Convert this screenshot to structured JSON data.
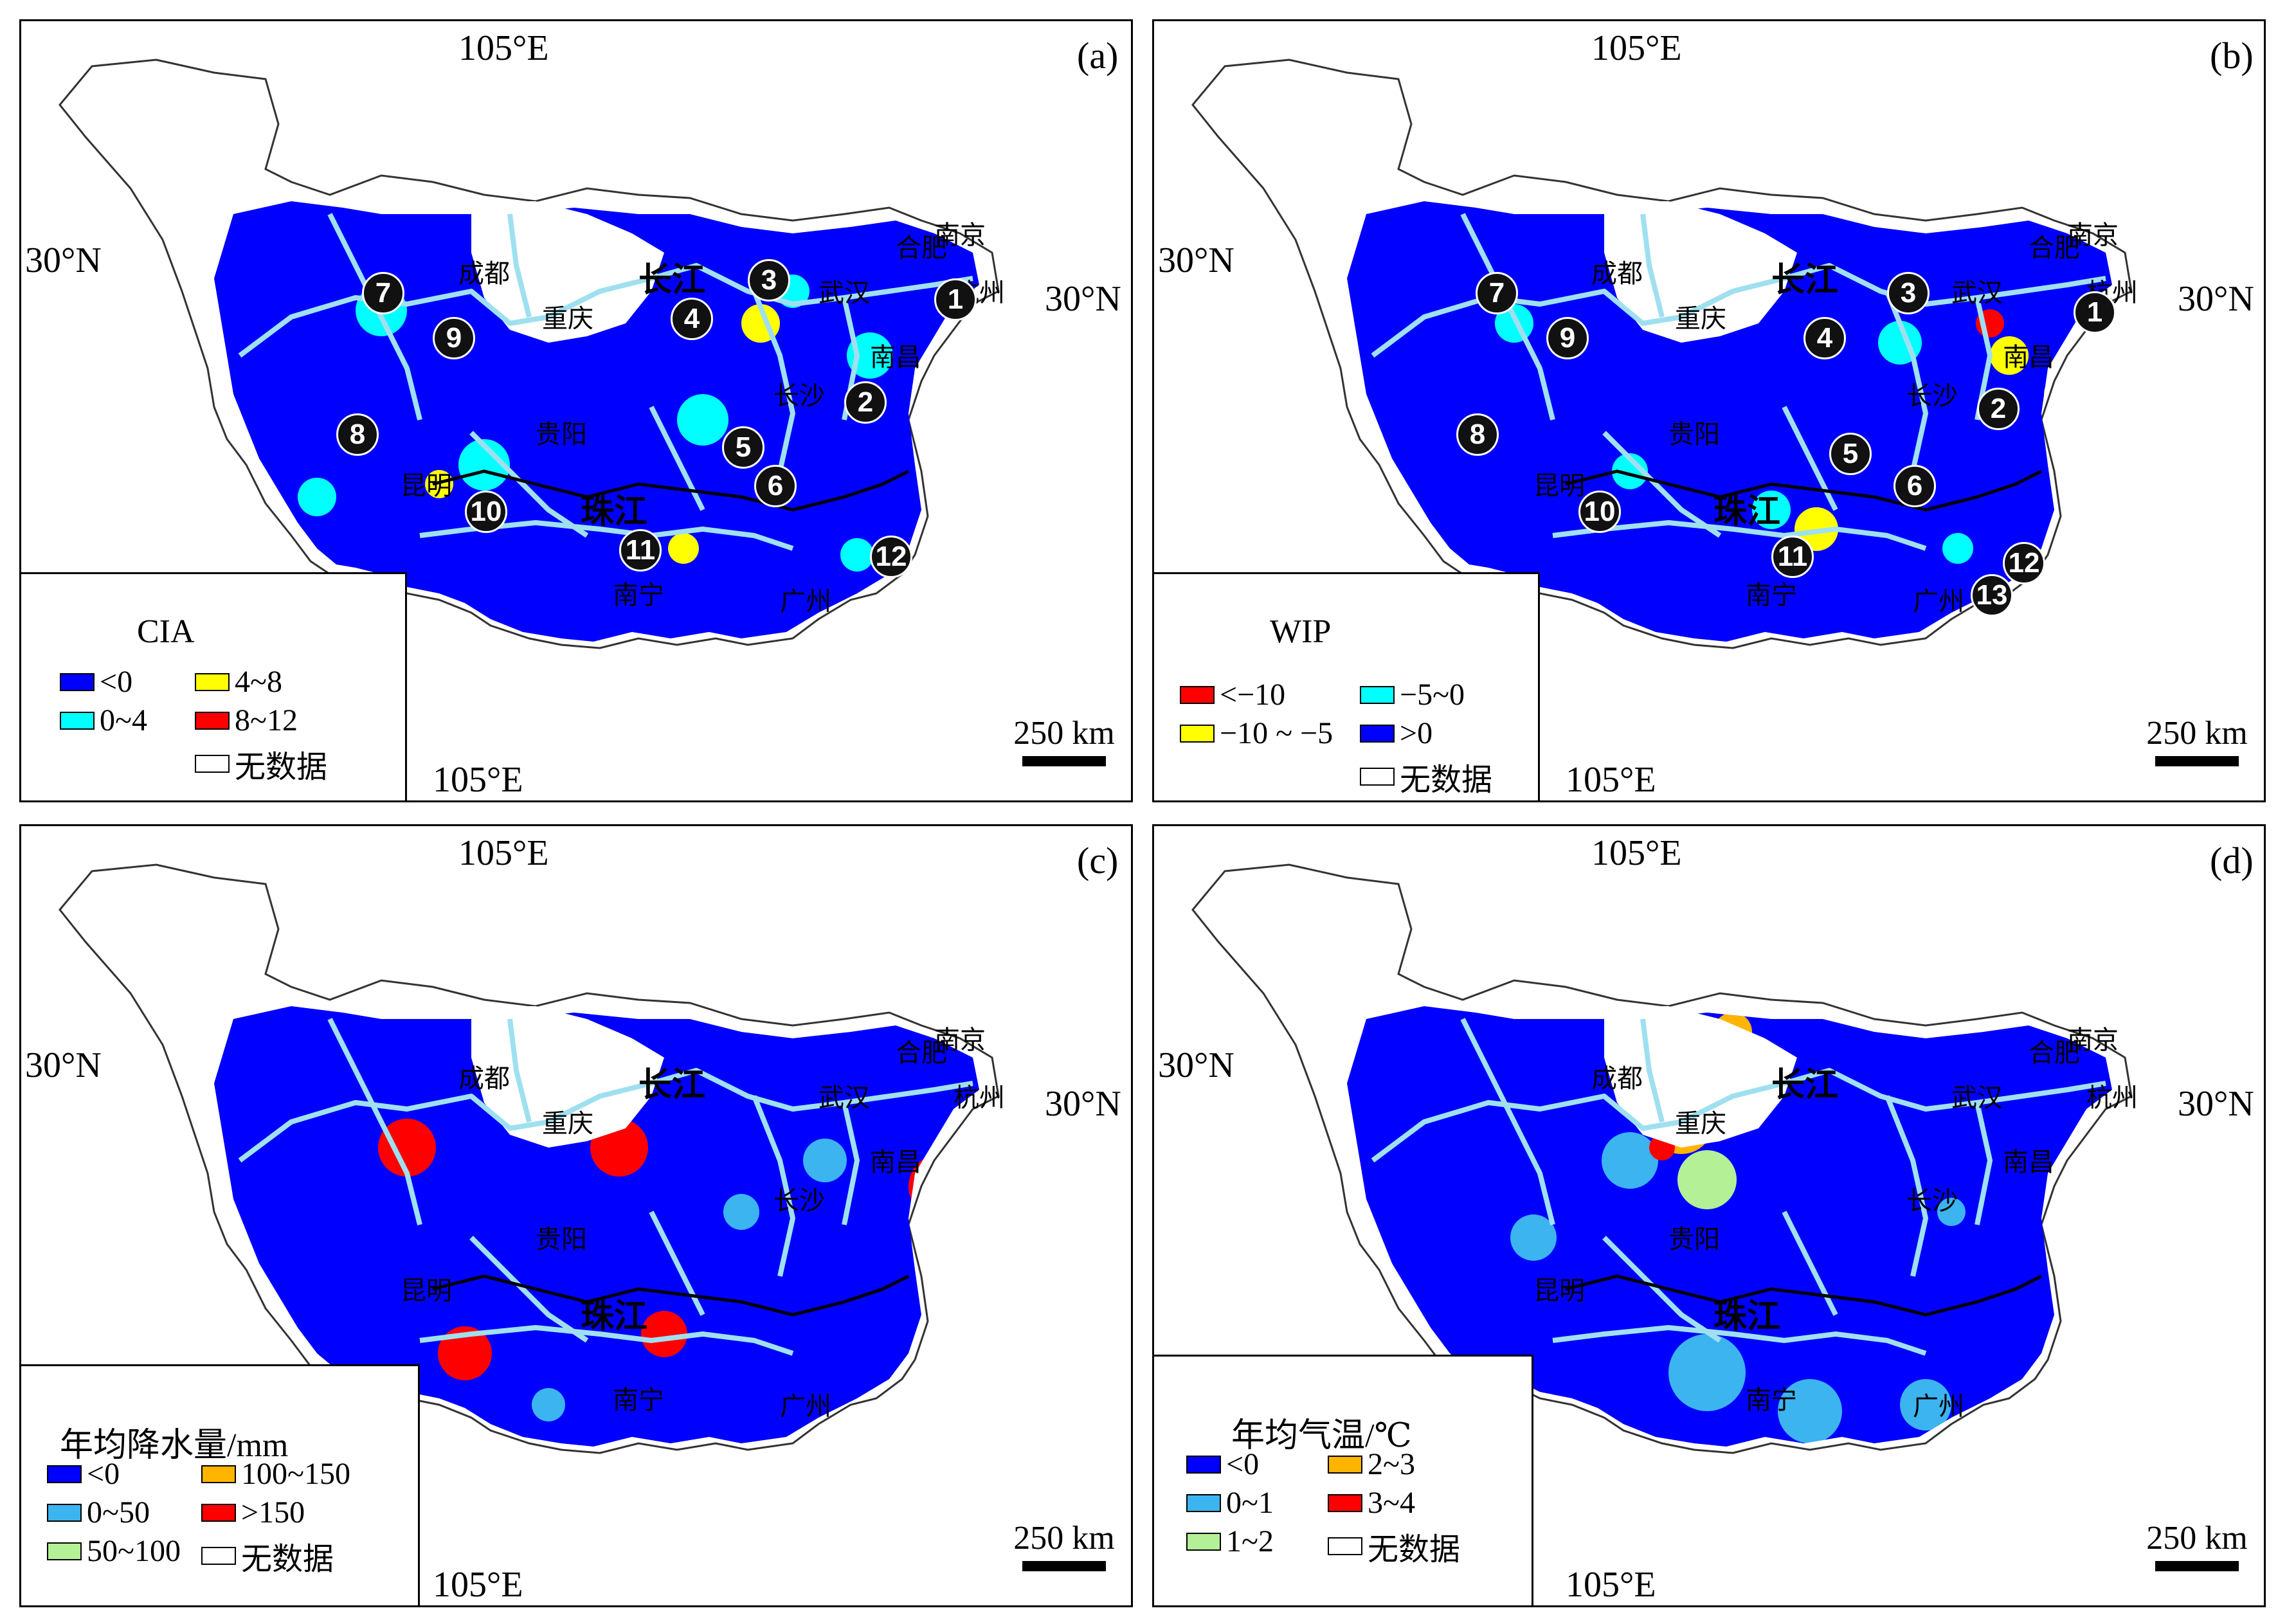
{
  "panels": [
    {
      "label": "(a)",
      "lon_top": "105°E",
      "lon_bottom": "105°E",
      "lat_left": "30°N",
      "lat_right": "30°N",
      "legend_title": "CIA",
      "legend_items": [
        {
          "label": "<0",
          "color": "#0000ff"
        },
        {
          "label": "4~8",
          "color": "#ffff00"
        },
        {
          "label": "0~4",
          "color": "#00ffff"
        },
        {
          "label": "8~12",
          "color": "#ff0000"
        },
        {
          "label": "无数据",
          "color": "#ffffff"
        }
      ],
      "scale": "250 km",
      "cities": [
        "合肥",
        "南京",
        "杭州",
        "成都",
        "重庆",
        "武汉",
        "南昌",
        "长沙",
        "贵阳",
        "昆明",
        "南宁",
        "广州"
      ],
      "rivers": [
        "长江",
        "珠江"
      ],
      "markers": [
        "7",
        "9",
        "3",
        "4",
        "1",
        "2",
        "8",
        "5",
        "6",
        "10",
        "11",
        "12"
      ]
    },
    {
      "label": "(b)",
      "lon_top": "105°E",
      "lon_bottom": "105°E",
      "lat_left": "30°N",
      "lat_right": "30°N",
      "legend_title": "WIP",
      "legend_items": [
        {
          "label": "<−10",
          "color": "#ff0000"
        },
        {
          "label": "−5~0",
          "color": "#00ffff"
        },
        {
          "label": "−10 ~ −5",
          "color": "#ffff00"
        },
        {
          "label": ">0",
          "color": "#0000ff"
        },
        {
          "label": "无数据",
          "color": "#ffffff"
        }
      ],
      "scale": "250 km",
      "cities": [
        "合肥",
        "南京",
        "杭州",
        "成都",
        "重庆",
        "武汉",
        "南昌",
        "长沙",
        "贵阳",
        "昆明",
        "南宁",
        "广州"
      ],
      "rivers": [
        "长江",
        "珠江"
      ],
      "markers": [
        "7",
        "9",
        "3",
        "4",
        "1",
        "2",
        "8",
        "5",
        "6",
        "10",
        "11",
        "12",
        "13"
      ]
    },
    {
      "label": "(c)",
      "lon_top": "105°E",
      "lon_bottom": "105°E",
      "lat_left": "30°N",
      "lat_right": "30°N",
      "legend_title": "年均降水量/mm",
      "legend_items": [
        {
          "label": "<0",
          "color": "#0000ff"
        },
        {
          "label": "100~150",
          "color": "#ffb400"
        },
        {
          "label": "0~50",
          "color": "#3cb4f0"
        },
        {
          "label": ">150",
          "color": "#ff0000"
        },
        {
          "label": "50~100",
          "color": "#b4f096"
        },
        {
          "label": "无数据",
          "color": "#ffffff"
        }
      ],
      "scale": "250 km",
      "cities": [
        "合肥",
        "南京",
        "杭州",
        "成都",
        "重庆",
        "武汉",
        "南昌",
        "长沙",
        "贵阳",
        "昆明",
        "南宁",
        "广州"
      ],
      "rivers": [
        "长江",
        "珠江"
      ],
      "markers": []
    },
    {
      "label": "(d)",
      "lon_top": "105°E",
      "lon_bottom": "105°E",
      "lat_left": "30°N",
      "lat_right": "30°N",
      "legend_title": "年均气温/℃",
      "legend_items": [
        {
          "label": "<0",
          "color": "#0000ff"
        },
        {
          "label": "2~3",
          "color": "#ffb400"
        },
        {
          "label": "0~1",
          "color": "#3cb4f0"
        },
        {
          "label": "3~4",
          "color": "#ff0000"
        },
        {
          "label": "1~2",
          "color": "#b4f096"
        },
        {
          "label": "无数据",
          "color": "#ffffff"
        }
      ],
      "scale": "250 km",
      "cities": [
        "合肥",
        "南京",
        "杭州",
        "成都",
        "重庆",
        "武汉",
        "南昌",
        "长沙",
        "贵阳",
        "昆明",
        "南宁",
        "广州"
      ],
      "rivers": [
        "长江",
        "珠江"
      ],
      "markers": []
    }
  ]
}
